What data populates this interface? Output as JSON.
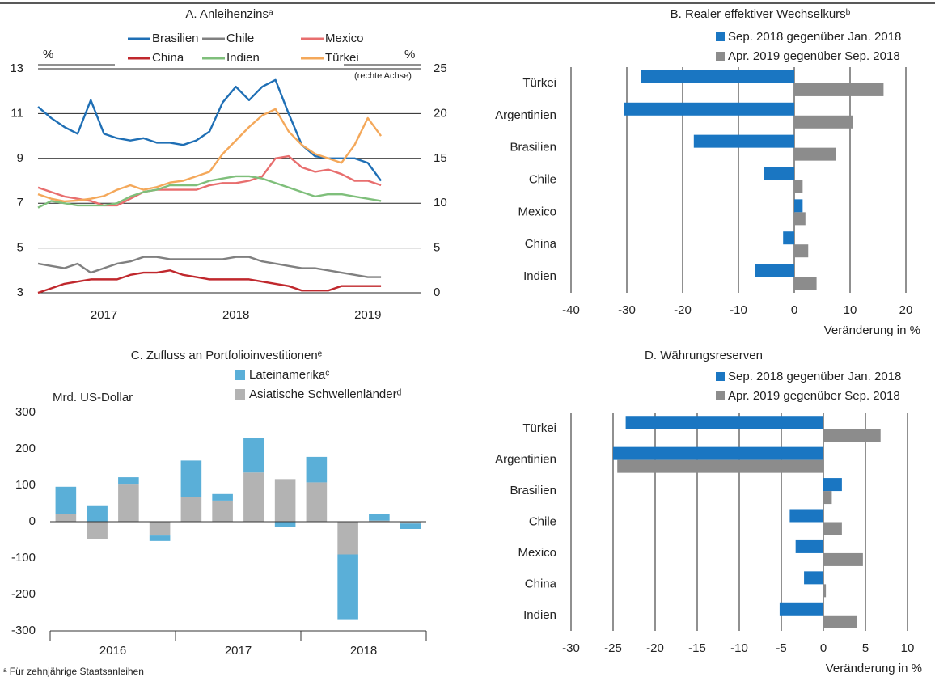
{
  "chart_data": [
    {
      "type": "line",
      "title": "A. Anleihenzinsᵃ",
      "ylabel": "%",
      "y2label": "%",
      "note": "(rechte Achse)",
      "x": [
        2017.0,
        2017.1,
        2017.2,
        2017.3,
        2017.4,
        2017.5,
        2017.6,
        2017.7,
        2017.8,
        2017.9,
        2018.0,
        2018.1,
        2018.2,
        2018.3,
        2018.4,
        2018.5,
        2018.6,
        2018.7,
        2018.8,
        2018.9,
        2019.0,
        2019.1,
        2019.2,
        2019.3,
        2019.4,
        2019.5,
        2019.6
      ],
      "xlim": [
        2017.0,
        2019.9
      ],
      "xticks": [
        {
          "value": 2017.5,
          "label": "2017"
        },
        {
          "value": 2018.5,
          "label": "2018"
        },
        {
          "value": 2019.5,
          "label": "2019"
        }
      ],
      "ylim": [
        3,
        13
      ],
      "yticks": [
        3,
        5,
        7,
        9,
        11,
        13
      ],
      "y2lim": [
        0,
        25
      ],
      "y2ticks": [
        0,
        5,
        10,
        15,
        20,
        25
      ],
      "y2color": "#f0a030",
      "grid": true,
      "series": [
        {
          "name": "Brasilien",
          "color": "#1f6fb5",
          "values": [
            11.3,
            10.8,
            10.4,
            10.1,
            11.6,
            10.1,
            9.9,
            9.8,
            9.9,
            9.7,
            9.7,
            9.6,
            9.8,
            10.2,
            11.5,
            12.2,
            11.6,
            12.2,
            12.5,
            11.0,
            9.6,
            9.1,
            9.0,
            9.0,
            9.0,
            8.8,
            8.0
          ]
        },
        {
          "name": "Chile",
          "color": "#808080",
          "values": [
            4.3,
            4.2,
            4.1,
            4.3,
            3.9,
            4.1,
            4.3,
            4.4,
            4.6,
            4.6,
            4.5,
            4.5,
            4.5,
            4.5,
            4.5,
            4.6,
            4.6,
            4.4,
            4.3,
            4.2,
            4.1,
            4.1,
            4.0,
            3.9,
            3.8,
            3.7,
            3.7
          ]
        },
        {
          "name": "Mexico",
          "color": "#e86e6e",
          "values": [
            7.7,
            7.5,
            7.3,
            7.2,
            7.1,
            6.9,
            6.9,
            7.2,
            7.5,
            7.6,
            7.6,
            7.6,
            7.6,
            7.8,
            7.9,
            7.9,
            8.0,
            8.2,
            9.0,
            9.1,
            8.6,
            8.4,
            8.5,
            8.3,
            8.0,
            8.0,
            7.8
          ]
        },
        {
          "name": "China",
          "color": "#c0282d",
          "values": [
            3.0,
            3.2,
            3.4,
            3.5,
            3.6,
            3.6,
            3.6,
            3.8,
            3.9,
            3.9,
            4.0,
            3.8,
            3.7,
            3.6,
            3.6,
            3.6,
            3.6,
            3.5,
            3.4,
            3.3,
            3.1,
            3.1,
            3.1,
            3.3,
            3.3,
            3.3,
            3.3
          ]
        },
        {
          "name": "Indien",
          "color": "#7fbf7b",
          "values": [
            6.8,
            7.1,
            7.0,
            6.9,
            6.9,
            6.9,
            7.0,
            7.3,
            7.5,
            7.6,
            7.8,
            7.8,
            7.8,
            8.0,
            8.1,
            8.2,
            8.2,
            8.1,
            7.9,
            7.7,
            7.5,
            7.3,
            7.4,
            7.4,
            7.3,
            7.2,
            7.1
          ]
        },
        {
          "name": "Türkei",
          "color": "#f4a85a",
          "axis": "y2",
          "values": [
            11.0,
            10.5,
            10.2,
            10.3,
            10.5,
            10.8,
            11.5,
            12.0,
            11.5,
            11.8,
            12.3,
            12.5,
            13.0,
            13.5,
            15.5,
            17.0,
            18.5,
            19.8,
            20.5,
            18.0,
            16.5,
            15.5,
            15.0,
            14.5,
            16.5,
            19.5,
            17.5
          ]
        }
      ]
    },
    {
      "type": "barh",
      "title": "B. Realer effektiver Wechselkursᵇ",
      "xlabel": "Veränderung in %",
      "categories": [
        "Türkei",
        "Argentinien",
        "Brasilien",
        "Chile",
        "Mexico",
        "China",
        "Indien"
      ],
      "xlim": [
        -40,
        20
      ],
      "xticks": [
        -40,
        -30,
        -20,
        -10,
        0,
        10,
        20
      ],
      "grid": true,
      "series": [
        {
          "name": "Sep. 2018 gegenüber Jan. 2018",
          "color": "#1a76c2",
          "values": [
            -27.5,
            -30.5,
            -18,
            -5.5,
            1.5,
            -2,
            -7
          ]
        },
        {
          "name": "Apr. 2019 gegenüber Sep. 2018",
          "color": "#8c8c8c",
          "values": [
            16,
            10.5,
            7.5,
            1.5,
            2,
            2.5,
            4
          ]
        }
      ]
    },
    {
      "type": "stacked_bar",
      "title": "C. Zufluss an Portfolioinvestitionenᵉ",
      "ylabel": "Mrd. US-Dollar",
      "categories": [
        null,
        null,
        null,
        null,
        null,
        null,
        null,
        null,
        null,
        null,
        null,
        null
      ],
      "groups": [
        "2016",
        "2017",
        "2018"
      ],
      "ylim": [
        -300,
        300
      ],
      "yticks": [
        -300,
        -200,
        -100,
        0,
        100,
        200,
        300
      ],
      "series": [
        {
          "name": "Lateinamerikaᶜ",
          "color": "#5aafd8",
          "values": [
            74,
            45,
            20,
            -15,
            100,
            18,
            96,
            -15,
            70,
            -178,
            18,
            -15
          ]
        },
        {
          "name": "Asiatische Schwellenländerᵈ",
          "color": "#b3b3b3",
          "values": [
            22,
            -47,
            102,
            -38,
            68,
            58,
            135,
            117,
            108,
            -90,
            3,
            -5
          ]
        }
      ]
    },
    {
      "type": "barh",
      "title": "D. Währungsreserven",
      "xlabel": "Veränderung in %",
      "categories": [
        "Türkei",
        "Argentinien",
        "Brasilien",
        "Chile",
        "Mexico",
        "China",
        "Indien"
      ],
      "xlim": [
        -30,
        10
      ],
      "xticks": [
        -30,
        -25,
        -20,
        -15,
        -10,
        -5,
        0,
        5,
        10
      ],
      "grid": true,
      "series": [
        {
          "name": "Sep. 2018 gegenüber Jan. 2018",
          "color": "#1a76c2",
          "values": [
            -23.5,
            -25,
            2.2,
            -4,
            -3.3,
            -2.3,
            -5.2
          ]
        },
        {
          "name": "Apr. 2019 gegenüber Sep. 2018",
          "color": "#8c8c8c",
          "values": [
            6.8,
            -24.5,
            1,
            2.2,
            4.7,
            0.3,
            4
          ]
        }
      ]
    }
  ],
  "footnote": "ᵃ Für zehnjährige Staatsanleihen"
}
